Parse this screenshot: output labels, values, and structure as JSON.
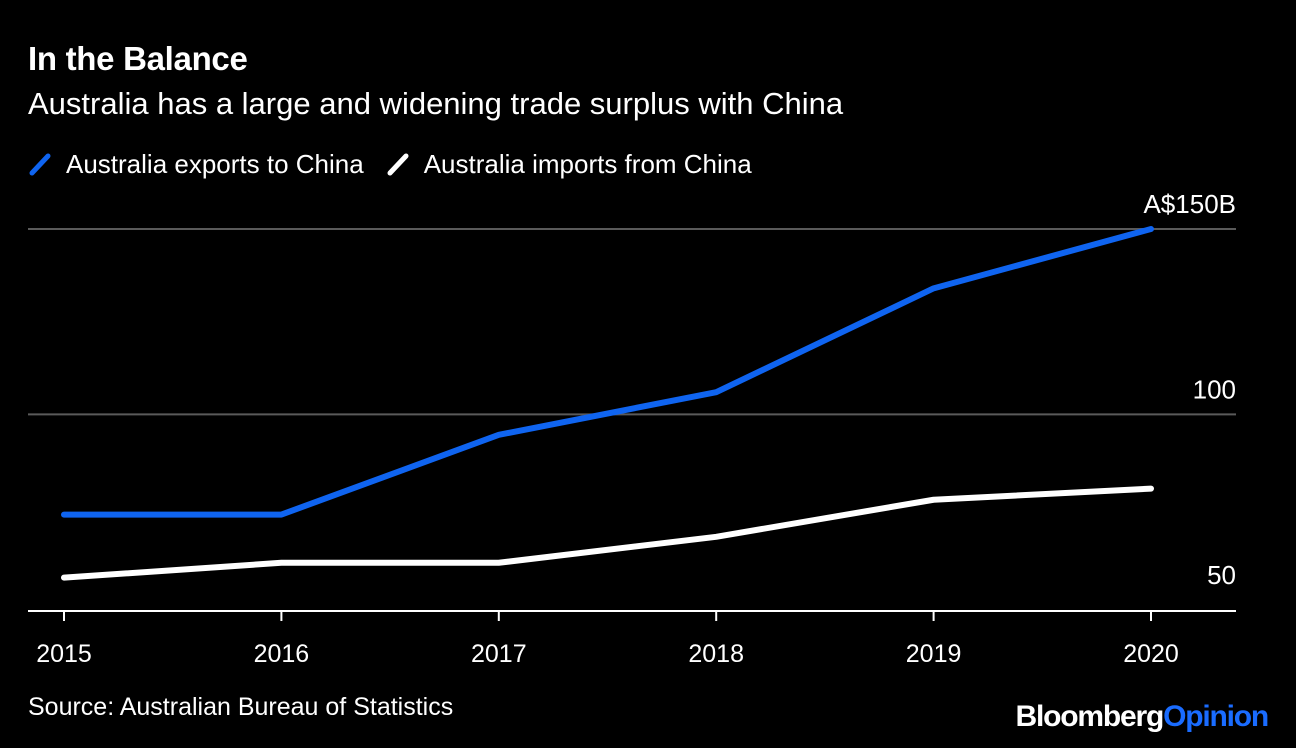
{
  "chart_data": {
    "type": "line",
    "title": "In the Balance",
    "subtitle": "Australia has a large and widening trade surplus with China",
    "x": [
      "2015",
      "2016",
      "2017",
      "2018",
      "2019",
      "2020"
    ],
    "series": [
      {
        "name": "Australia exports to China",
        "color": "#0f64f0",
        "values": [
          73,
          73,
          94.5,
          106,
          134,
          150
        ]
      },
      {
        "name": "Australia imports from China",
        "color": "#ffffff",
        "values": [
          56,
          60,
          60,
          67,
          77,
          80
        ]
      }
    ],
    "y_ticks": [
      {
        "value": 50,
        "label": "50"
      },
      {
        "value": 100,
        "label": "100"
      },
      {
        "value": 150,
        "label": "A$150B"
      }
    ],
    "ylim": [
      47,
      150
    ],
    "grid": true,
    "legend_position": "top-left"
  },
  "source": "Source: Australian Bureau of Statistics",
  "logo": {
    "brand": "Bloomberg",
    "opinion": "Opinion"
  },
  "colors": {
    "background": "#000000",
    "gridline": "#5a5a5a",
    "accent": "#1a6cff"
  }
}
